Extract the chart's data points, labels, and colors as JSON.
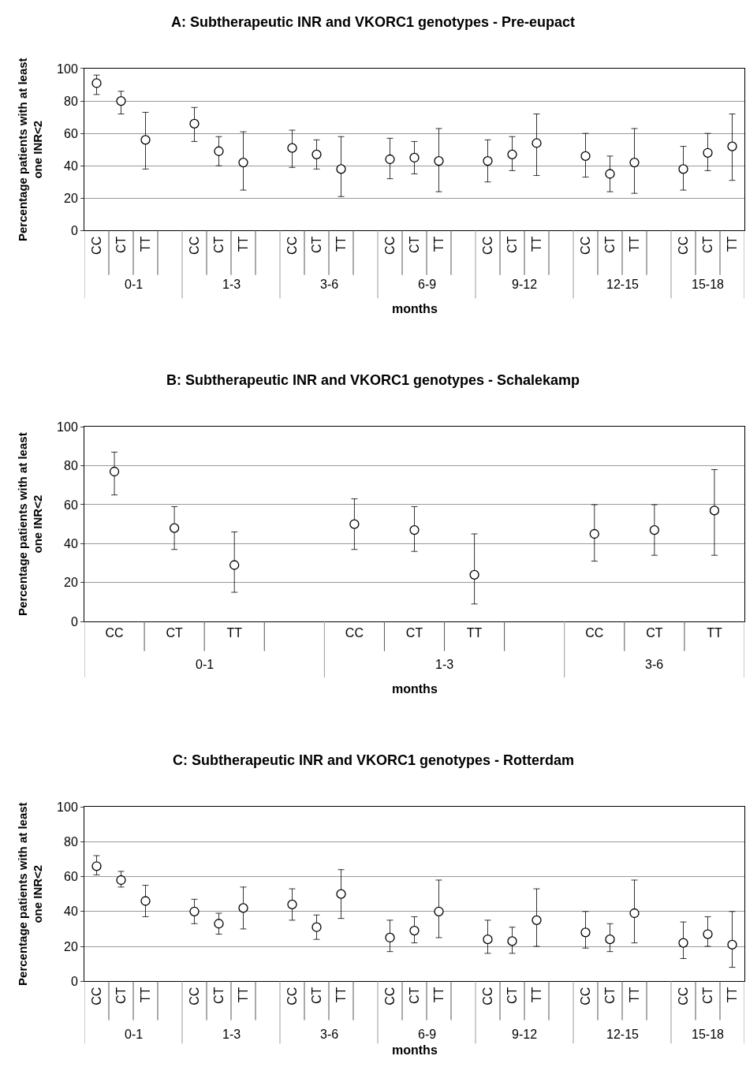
{
  "chart_data": [
    {
      "type": "scatter",
      "title": "A: Subtherapeutic INR and VKORC1 genotypes - Pre-eupact",
      "xlabel": "months",
      "ylabel": "Percentage patients with at least\none INR<2",
      "categories": [
        "CC",
        "CT",
        "TT",
        null,
        "CC",
        "CT",
        "TT",
        null,
        "CC",
        "CT",
        "TT",
        null,
        "CC",
        "CT",
        "TT",
        null,
        "CC",
        "CT",
        "TT",
        null,
        "CC",
        "CT",
        "TT",
        null,
        "CC",
        "CT",
        "TT"
      ],
      "annotations": [
        "0-1",
        "1-3",
        "3-6",
        "6-9",
        "9-12",
        "12-15",
        "15-18"
      ],
      "series": [
        {
          "color": "#000000",
          "values": [
            91,
            80,
            56,
            null,
            66,
            49,
            42,
            null,
            51,
            47,
            38,
            null,
            44,
            45,
            43,
            null,
            43,
            47,
            54,
            null,
            46,
            35,
            42,
            null,
            38,
            48,
            52
          ],
          "errors": [
            [
              84,
              96
            ],
            [
              72,
              86
            ],
            [
              38,
              73
            ],
            null,
            [
              55,
              76
            ],
            [
              40,
              58
            ],
            [
              25,
              61
            ],
            null,
            [
              39,
              62
            ],
            [
              38,
              56
            ],
            [
              21,
              58
            ],
            null,
            [
              32,
              57
            ],
            [
              35,
              55
            ],
            [
              24,
              63
            ],
            null,
            [
              30,
              56
            ],
            [
              37,
              58
            ],
            [
              34,
              72
            ],
            null,
            [
              33,
              60
            ],
            [
              24,
              46
            ],
            [
              23,
              63
            ],
            null,
            [
              25,
              52
            ],
            [
              37,
              60
            ],
            [
              31,
              72
            ]
          ]
        }
      ],
      "marker": "circle",
      "ylim": [
        0,
        100
      ],
      "yticks": [
        0,
        20,
        40,
        60,
        80,
        100
      ],
      "grid": "y"
    },
    {
      "type": "scatter",
      "title": "B: Subtherapeutic INR and VKORC1 genotypes - Schalekamp",
      "xlabel": "months",
      "ylabel": "Percentage patients with at least\none INR<2",
      "categories": [
        "CC",
        "CT",
        "TT",
        null,
        "CC",
        "CT",
        "TT",
        null,
        "CC",
        "CT",
        "TT"
      ],
      "annotations": [
        "0-1",
        "1-3",
        "3-6"
      ],
      "series": [
        {
          "color": "#000000",
          "values": [
            77,
            48,
            29,
            null,
            50,
            47,
            24,
            null,
            45,
            47,
            57
          ],
          "errors": [
            [
              65,
              87
            ],
            [
              37,
              59
            ],
            [
              15,
              46
            ],
            null,
            [
              37,
              63
            ],
            [
              36,
              59
            ],
            [
              9,
              45
            ],
            null,
            [
              31,
              60
            ],
            [
              34,
              60
            ],
            [
              34,
              78
            ]
          ]
        }
      ],
      "marker": "circle",
      "ylim": [
        0,
        100
      ],
      "yticks": [
        0,
        20,
        40,
        60,
        80,
        100
      ],
      "grid": "y"
    },
    {
      "type": "scatter",
      "title": "C: Subtherapeutic INR and VKORC1 genotypes - Rotterdam",
      "xlabel": "months",
      "ylabel": "Percentage patients with at least\none INR<2",
      "categories": [
        "CC",
        "CT",
        "TT",
        null,
        "CC",
        "CT",
        "TT",
        null,
        "CC",
        "CT",
        "TT",
        null,
        "CC",
        "CT",
        "TT",
        null,
        "CC",
        "CT",
        "TT",
        null,
        "CC",
        "CT",
        "TT",
        null,
        "CC",
        "CT",
        "TT"
      ],
      "annotations": [
        "0-1",
        "1-3",
        "3-6",
        "6-9",
        "9-12",
        "12-15",
        "15-18"
      ],
      "series": [
        {
          "color": "#000000",
          "values": [
            66,
            58,
            46,
            null,
            40,
            33,
            42,
            null,
            44,
            31,
            50,
            null,
            25,
            29,
            40,
            null,
            24,
            23,
            35,
            null,
            28,
            24,
            39,
            null,
            22,
            27,
            21
          ],
          "errors": [
            [
              61,
              72
            ],
            [
              54,
              63
            ],
            [
              37,
              55
            ],
            null,
            [
              33,
              47
            ],
            [
              27,
              39
            ],
            [
              30,
              54
            ],
            null,
            [
              35,
              53
            ],
            [
              24,
              38
            ],
            [
              36,
              64
            ],
            null,
            [
              17,
              35
            ],
            [
              22,
              37
            ],
            [
              25,
              58
            ],
            null,
            [
              16,
              35
            ],
            [
              16,
              31
            ],
            [
              20,
              53
            ],
            null,
            [
              19,
              40
            ],
            [
              17,
              33
            ],
            [
              22,
              58
            ],
            null,
            [
              13,
              34
            ],
            [
              20,
              37
            ],
            [
              8,
              40
            ]
          ]
        }
      ],
      "marker": "circle",
      "ylim": [
        0,
        100
      ],
      "yticks": [
        0,
        20,
        40,
        60,
        80,
        100
      ],
      "grid": "y"
    }
  ]
}
